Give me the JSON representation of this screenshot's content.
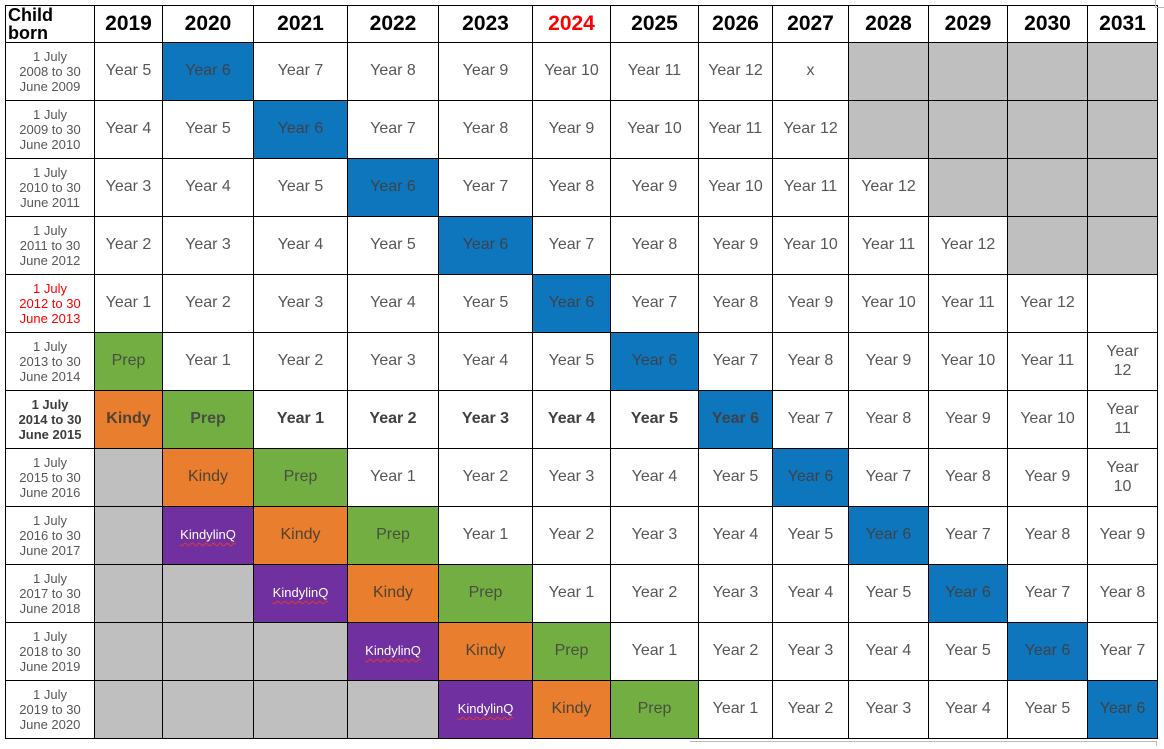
{
  "table": {
    "corner_label": "Child\nborn",
    "columns": [
      {
        "label": "2019"
      },
      {
        "label": "2020"
      },
      {
        "label": "2021"
      },
      {
        "label": "2022"
      },
      {
        "label": "2023"
      },
      {
        "label": "2024",
        "color": "red"
      },
      {
        "label": "2025"
      },
      {
        "label": "2026"
      },
      {
        "label": "2027"
      },
      {
        "label": "2028"
      },
      {
        "label": "2029"
      },
      {
        "label": "2030"
      },
      {
        "label": "2031"
      }
    ],
    "rows": [
      {
        "label": [
          "1 July",
          "2008 to 30",
          "June 2009"
        ],
        "style": "normal",
        "cells": [
          {
            "t": "Year 5"
          },
          {
            "t": "Year 6",
            "bg": "blue"
          },
          {
            "t": "Year 7"
          },
          {
            "t": "Year 8"
          },
          {
            "t": "Year 9"
          },
          {
            "t": "Year 10"
          },
          {
            "t": "Year 11"
          },
          {
            "t": "Year 12"
          },
          {
            "t": "x"
          },
          {
            "bg": "gray"
          },
          {
            "bg": "gray"
          },
          {
            "bg": "gray"
          },
          {
            "bg": "gray"
          }
        ]
      },
      {
        "label": [
          "1 July",
          "2009 to 30",
          "June 2010"
        ],
        "style": "normal",
        "cells": [
          {
            "t": "Year 4"
          },
          {
            "t": "Year 5"
          },
          {
            "t": "Year 6",
            "bg": "blue"
          },
          {
            "t": "Year 7"
          },
          {
            "t": "Year 8"
          },
          {
            "t": "Year 9"
          },
          {
            "t": "Year 10"
          },
          {
            "t": "Year 11"
          },
          {
            "t": "Year 12"
          },
          {
            "bg": "gray"
          },
          {
            "bg": "gray"
          },
          {
            "bg": "gray"
          },
          {
            "bg": "gray"
          }
        ]
      },
      {
        "label": [
          "1 July",
          "2010 to 30",
          "June 2011"
        ],
        "style": "normal",
        "cells": [
          {
            "t": "Year 3"
          },
          {
            "t": "Year 4"
          },
          {
            "t": "Year 5"
          },
          {
            "t": "Year 6",
            "bg": "blue"
          },
          {
            "t": "Year 7"
          },
          {
            "t": "Year 8"
          },
          {
            "t": "Year 9"
          },
          {
            "t": "Year 10"
          },
          {
            "t": "Year 11"
          },
          {
            "t": "Year 12"
          },
          {
            "bg": "gray"
          },
          {
            "bg": "gray"
          },
          {
            "bg": "gray"
          }
        ]
      },
      {
        "label": [
          "1 July",
          "2011 to 30",
          "June 2012"
        ],
        "style": "normal",
        "cells": [
          {
            "t": "Year 2"
          },
          {
            "t": "Year 3"
          },
          {
            "t": "Year 4"
          },
          {
            "t": "Year 5"
          },
          {
            "t": "Year 6",
            "bg": "blue"
          },
          {
            "t": "Year 7"
          },
          {
            "t": "Year 8"
          },
          {
            "t": "Year 9"
          },
          {
            "t": "Year 10"
          },
          {
            "t": "Year 11"
          },
          {
            "t": "Year 12"
          },
          {
            "bg": "gray"
          },
          {
            "bg": "gray"
          }
        ]
      },
      {
        "label": [
          "1 July",
          "2012 to 30",
          "June 2013"
        ],
        "style": "red",
        "cells": [
          {
            "t": "Year 1"
          },
          {
            "t": "Year 2"
          },
          {
            "t": "Year 3"
          },
          {
            "t": "Year 4"
          },
          {
            "t": "Year 5"
          },
          {
            "t": "Year 6",
            "bg": "blue"
          },
          {
            "t": "Year 7"
          },
          {
            "t": "Year 8"
          },
          {
            "t": "Year 9"
          },
          {
            "t": "Year 10"
          },
          {
            "t": "Year 11"
          },
          {
            "t": "Year 12"
          },
          {
            "t": ""
          }
        ]
      },
      {
        "label": [
          "1 July",
          "2013 to 30",
          "June 2014"
        ],
        "style": "normal",
        "cells": [
          {
            "t": "Prep",
            "bg": "green"
          },
          {
            "t": "Year 1"
          },
          {
            "t": "Year 2"
          },
          {
            "t": "Year 3"
          },
          {
            "t": "Year 4"
          },
          {
            "t": "Year 5"
          },
          {
            "t": "Year 6",
            "bg": "blue"
          },
          {
            "t": "Year 7"
          },
          {
            "t": "Year 8"
          },
          {
            "t": "Year 9"
          },
          {
            "t": "Year 10"
          },
          {
            "t": "Year 11"
          },
          {
            "t": "Year\n12"
          }
        ]
      },
      {
        "label": [
          "1 July",
          "2014 to 30",
          "June 2015"
        ],
        "style": "bold",
        "cells": [
          {
            "t": "Kindy",
            "bg": "orange",
            "b": true
          },
          {
            "t": "Prep",
            "bg": "green",
            "b": true
          },
          {
            "t": "Year 1",
            "b": true
          },
          {
            "t": "Year 2",
            "b": true
          },
          {
            "t": "Year 3",
            "b": true
          },
          {
            "t": "Year 4",
            "b": true
          },
          {
            "t": "Year 5",
            "b": true
          },
          {
            "t": "Year 6",
            "bg": "blue",
            "b": true
          },
          {
            "t": "Year 7"
          },
          {
            "t": "Year 8"
          },
          {
            "t": "Year 9"
          },
          {
            "t": "Year 10"
          },
          {
            "t": "Year\n11"
          }
        ]
      },
      {
        "label": [
          "1 July",
          "2015 to 30",
          "June 2016"
        ],
        "style": "normal",
        "cells": [
          {
            "bg": "gray"
          },
          {
            "t": "Kindy",
            "bg": "orange"
          },
          {
            "t": "Prep",
            "bg": "green"
          },
          {
            "t": "Year 1"
          },
          {
            "t": "Year 2"
          },
          {
            "t": "Year 3"
          },
          {
            "t": "Year 4"
          },
          {
            "t": "Year 5"
          },
          {
            "t": "Year 6",
            "bg": "blue"
          },
          {
            "t": "Year 7"
          },
          {
            "t": "Year 8"
          },
          {
            "t": "Year 9"
          },
          {
            "t": "Year\n10"
          }
        ]
      },
      {
        "label": [
          "1 July",
          "2016 to 30",
          "June 2017"
        ],
        "style": "normal",
        "cells": [
          {
            "bg": "gray"
          },
          {
            "t": "KindylinQ",
            "bg": "purple"
          },
          {
            "t": "Kindy",
            "bg": "orange"
          },
          {
            "t": "Prep",
            "bg": "green"
          },
          {
            "t": "Year 1"
          },
          {
            "t": "Year 2"
          },
          {
            "t": "Year 3"
          },
          {
            "t": "Year 4"
          },
          {
            "t": "Year 5"
          },
          {
            "t": "Year 6",
            "bg": "blue"
          },
          {
            "t": "Year 7"
          },
          {
            "t": "Year 8"
          },
          {
            "t": "Year 9"
          }
        ]
      },
      {
        "label": [
          "1 July",
          "2017 to 30",
          "June 2018"
        ],
        "style": "normal",
        "cells": [
          {
            "bg": "gray"
          },
          {
            "bg": "gray"
          },
          {
            "t": "KindylinQ",
            "bg": "purple"
          },
          {
            "t": "Kindy",
            "bg": "orange"
          },
          {
            "t": "Prep",
            "bg": "green"
          },
          {
            "t": "Year 1"
          },
          {
            "t": "Year 2"
          },
          {
            "t": "Year 3"
          },
          {
            "t": "Year 4"
          },
          {
            "t": "Year 5"
          },
          {
            "t": "Year 6",
            "bg": "blue"
          },
          {
            "t": "Year 7"
          },
          {
            "t": "Year 8"
          }
        ]
      },
      {
        "label": [
          "1 July",
          "2018 to 30",
          "June 2019"
        ],
        "style": "normal",
        "cells": [
          {
            "bg": "gray"
          },
          {
            "bg": "gray"
          },
          {
            "bg": "gray"
          },
          {
            "t": "KindylinQ",
            "bg": "purple"
          },
          {
            "t": "Kindy",
            "bg": "orange"
          },
          {
            "t": "Prep",
            "bg": "green"
          },
          {
            "t": "Year 1"
          },
          {
            "t": "Year 2"
          },
          {
            "t": "Year 3"
          },
          {
            "t": "Year 4"
          },
          {
            "t": "Year 5"
          },
          {
            "t": "Year 6",
            "bg": "blue"
          },
          {
            "t": "Year 7"
          }
        ]
      },
      {
        "label": [
          "1 July",
          "2019 to 30",
          "June 2020"
        ],
        "style": "normal",
        "cells": [
          {
            "bg": "gray"
          },
          {
            "bg": "gray"
          },
          {
            "bg": "gray"
          },
          {
            "bg": "gray"
          },
          {
            "t": "KindylinQ",
            "bg": "purple"
          },
          {
            "t": "Kindy",
            "bg": "orange"
          },
          {
            "t": "Prep",
            "bg": "green"
          },
          {
            "t": "Year 1"
          },
          {
            "t": "Year 2"
          },
          {
            "t": "Year 3"
          },
          {
            "t": "Year 4"
          },
          {
            "t": "Year 5"
          },
          {
            "t": "Year 6",
            "bg": "blue"
          }
        ]
      }
    ]
  },
  "colors": {
    "year6_blue": "#0E76BD",
    "prep_green": "#73AE43",
    "kindy_orange": "#E87E2E",
    "kindylinq_purple": "#7030A0",
    "unavailable_gray": "#BFBFBF",
    "highlight_red": "#FF0000",
    "cell_text_gray": "#575757"
  }
}
